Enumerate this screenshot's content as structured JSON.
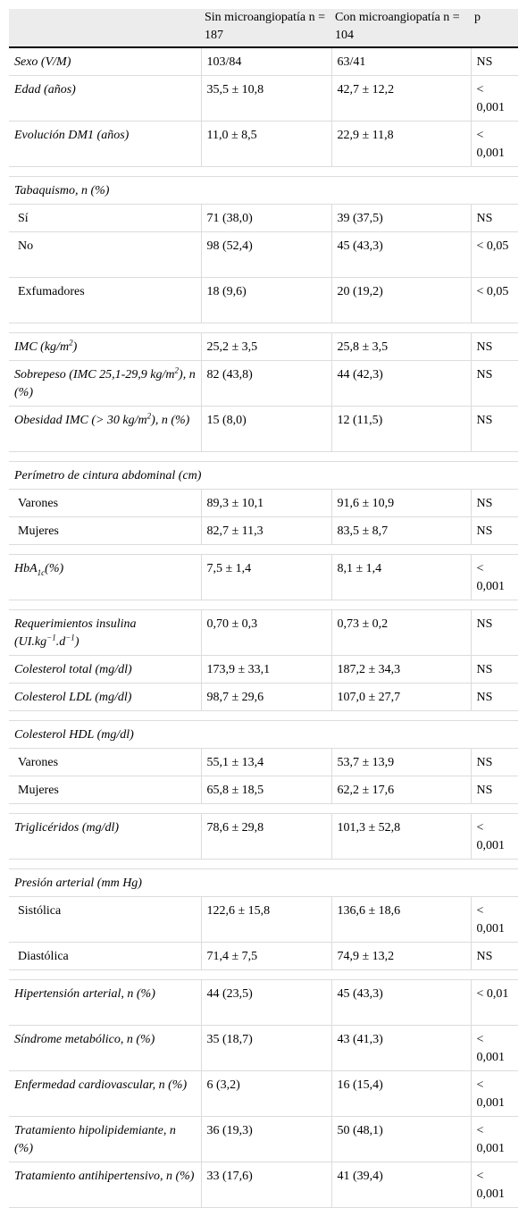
{
  "header": {
    "col1": "",
    "col2": "Sin microangiopatía n = 187",
    "col3": "Con microangiopatía n = 104",
    "col4": "p"
  },
  "rows": [
    {
      "type": "data",
      "label": "Sexo (V/M)",
      "c2": "103/84",
      "c3": "63/41",
      "p": "NS"
    },
    {
      "type": "data",
      "label": "Edad (años)",
      "c2": "35,5 ± 10,8",
      "c3": "42,7 ± 12,2",
      "p": "< 0,001"
    },
    {
      "type": "data",
      "label": "Evolución DM1 (años)",
      "c2": "11,0 ± 8,5",
      "c3": "22,9 ± 11,8",
      "p": "< 0,001"
    },
    {
      "type": "spacer"
    },
    {
      "type": "section",
      "label": "Tabaquismo, n (%)"
    },
    {
      "type": "sub",
      "label": "Sí",
      "c2": "71 (38,0)",
      "c3": "39 (37,5)",
      "p": "NS"
    },
    {
      "type": "sub",
      "label": "No",
      "c2": "98 (52,4)",
      "c3": "45 (43,3)",
      "p": "< 0,05"
    },
    {
      "type": "sub",
      "label": "Exfumadores",
      "c2": "18 (9,6)",
      "c3": "20 (19,2)",
      "p": "< 0,05"
    },
    {
      "type": "spacer"
    },
    {
      "type": "data",
      "label": "IMC (kg/m²)",
      "c2": "25,2 ± 3,5",
      "c3": "25,8 ± 3,5",
      "p": "NS"
    },
    {
      "type": "data",
      "label": "Sobrepeso (IMC 25,1-29,9 kg/m²), n (%)",
      "c2": "82 (43,8)",
      "c3": "44 (42,3)",
      "p": "NS"
    },
    {
      "type": "data",
      "label": "Obesidad IMC (> 30 kg/m²), n (%)",
      "c2": "15 (8,0)",
      "c3": "12 (11,5)",
      "p": "NS"
    },
    {
      "type": "spacer"
    },
    {
      "type": "section",
      "label": "Perímetro de cintura abdominal (cm)"
    },
    {
      "type": "sub",
      "label": "Varones",
      "c2": "89,3 ± 10,1",
      "c3": "91,6 ± 10,9",
      "p": "NS"
    },
    {
      "type": "sub",
      "label": "Mujeres",
      "c2": "82,7 ± 11,3",
      "c3": "83,5 ± 8,7",
      "p": "NS"
    },
    {
      "type": "spacer"
    },
    {
      "type": "data",
      "label": "HbA1c(%)",
      "c2": "7,5 ± 1,4",
      "c3": "8,1 ± 1,4",
      "p": "< 0,001"
    },
    {
      "type": "spacer"
    },
    {
      "type": "data",
      "label": "Requerimientos insulina (UI.kg−1.d−1)",
      "c2": "0,70 ± 0,3",
      "c3": "0,73 ± 0,2",
      "p": "NS"
    },
    {
      "type": "data",
      "label": "Colesterol total (mg/dl)",
      "c2": "173,9 ± 33,1",
      "c3": "187,2 ± 34,3",
      "p": "NS"
    },
    {
      "type": "data",
      "label": "Colesterol LDL (mg/dl)",
      "c2": "98,7 ± 29,6",
      "c3": "107,0 ± 27,7",
      "p": "NS"
    },
    {
      "type": "spacer"
    },
    {
      "type": "section",
      "label": "Colesterol HDL (mg/dl)"
    },
    {
      "type": "sub",
      "label": "Varones",
      "c2": "55,1 ± 13,4",
      "c3": "53,7 ± 13,9",
      "p": "NS"
    },
    {
      "type": "sub",
      "label": "Mujeres",
      "c2": "65,8 ± 18,5",
      "c3": "62,2 ± 17,6",
      "p": "NS"
    },
    {
      "type": "spacer"
    },
    {
      "type": "data",
      "label": "Triglicéridos (mg/dl)",
      "c2": "78,6 ± 29,8",
      "c3": "101,3 ± 52,8",
      "p": "< 0,001"
    },
    {
      "type": "spacer"
    },
    {
      "type": "section",
      "label": "Presión arterial (mm Hg)"
    },
    {
      "type": "sub",
      "label": "Sistólica",
      "c2": "122,6 ± 15,8",
      "c3": "136,6 ± 18,6",
      "p": "< 0,001"
    },
    {
      "type": "sub",
      "label": "Diastólica",
      "c2": "71,4 ± 7,5",
      "c3": "74,9 ± 13,2",
      "p": "NS"
    },
    {
      "type": "spacer"
    },
    {
      "type": "data",
      "label": "Hipertensión arterial, n (%)",
      "c2": "44 (23,5)",
      "c3": "45 (43,3)",
      "p": "< 0,01"
    },
    {
      "type": "data",
      "label": "Síndrome metabólico, n (%)",
      "c2": "35 (18,7)",
      "c3": "43 (41,3)",
      "p": "< 0,001"
    },
    {
      "type": "data",
      "label": "Enfermedad cardiovascular, n (%)",
      "c2": "6 (3,2)",
      "c3": "16 (15,4)",
      "p": "< 0,001"
    },
    {
      "type": "data",
      "label": "Tratamiento hipolipidemiante, n (%)",
      "c2": "36 (19,3)",
      "c3": "50 (48,1)",
      "p": "< 0,001"
    },
    {
      "type": "data",
      "label": "Tratamiento antihipertensivo, n (%)",
      "c2": "33 (17,6)",
      "c3": "41 (39,4)",
      "p": "< 0,001"
    }
  ]
}
